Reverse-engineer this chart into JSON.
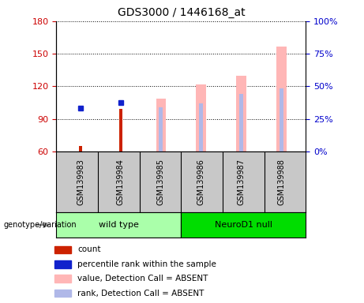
{
  "title": "GDS3000 / 1446168_at",
  "categories": [
    "GSM139983",
    "GSM139984",
    "GSM139985",
    "GSM139986",
    "GSM139987",
    "GSM139988"
  ],
  "ylim_left": [
    60,
    180
  ],
  "ylim_right": [
    0,
    100
  ],
  "yticks_left": [
    60,
    90,
    120,
    150,
    180
  ],
  "yticks_right": [
    0,
    25,
    50,
    75,
    100
  ],
  "ylabel_left_color": "#cc0000",
  "ylabel_right_color": "#0000cc",
  "count_values": [
    65,
    99,
    null,
    null,
    null,
    null
  ],
  "percentile_values": [
    100,
    105,
    null,
    null,
    null,
    null
  ],
  "value_absent_top": [
    null,
    null,
    109,
    122,
    130,
    157
  ],
  "rank_absent_top": [
    null,
    null,
    101,
    104,
    113,
    118
  ],
  "legend_items": [
    {
      "label": "count",
      "color": "#cc2200"
    },
    {
      "label": "percentile rank within the sample",
      "color": "#1122cc"
    },
    {
      "label": "value, Detection Call = ABSENT",
      "color": "#ffb6b6"
    },
    {
      "label": "rank, Detection Call = ABSENT",
      "color": "#b0b8e8"
    }
  ],
  "wildtype_color": "#aaffaa",
  "neurod1_color": "#00dd00",
  "xlabel_bg": "#c8c8c8",
  "plot_bg": "#ffffff",
  "ymin": 60
}
